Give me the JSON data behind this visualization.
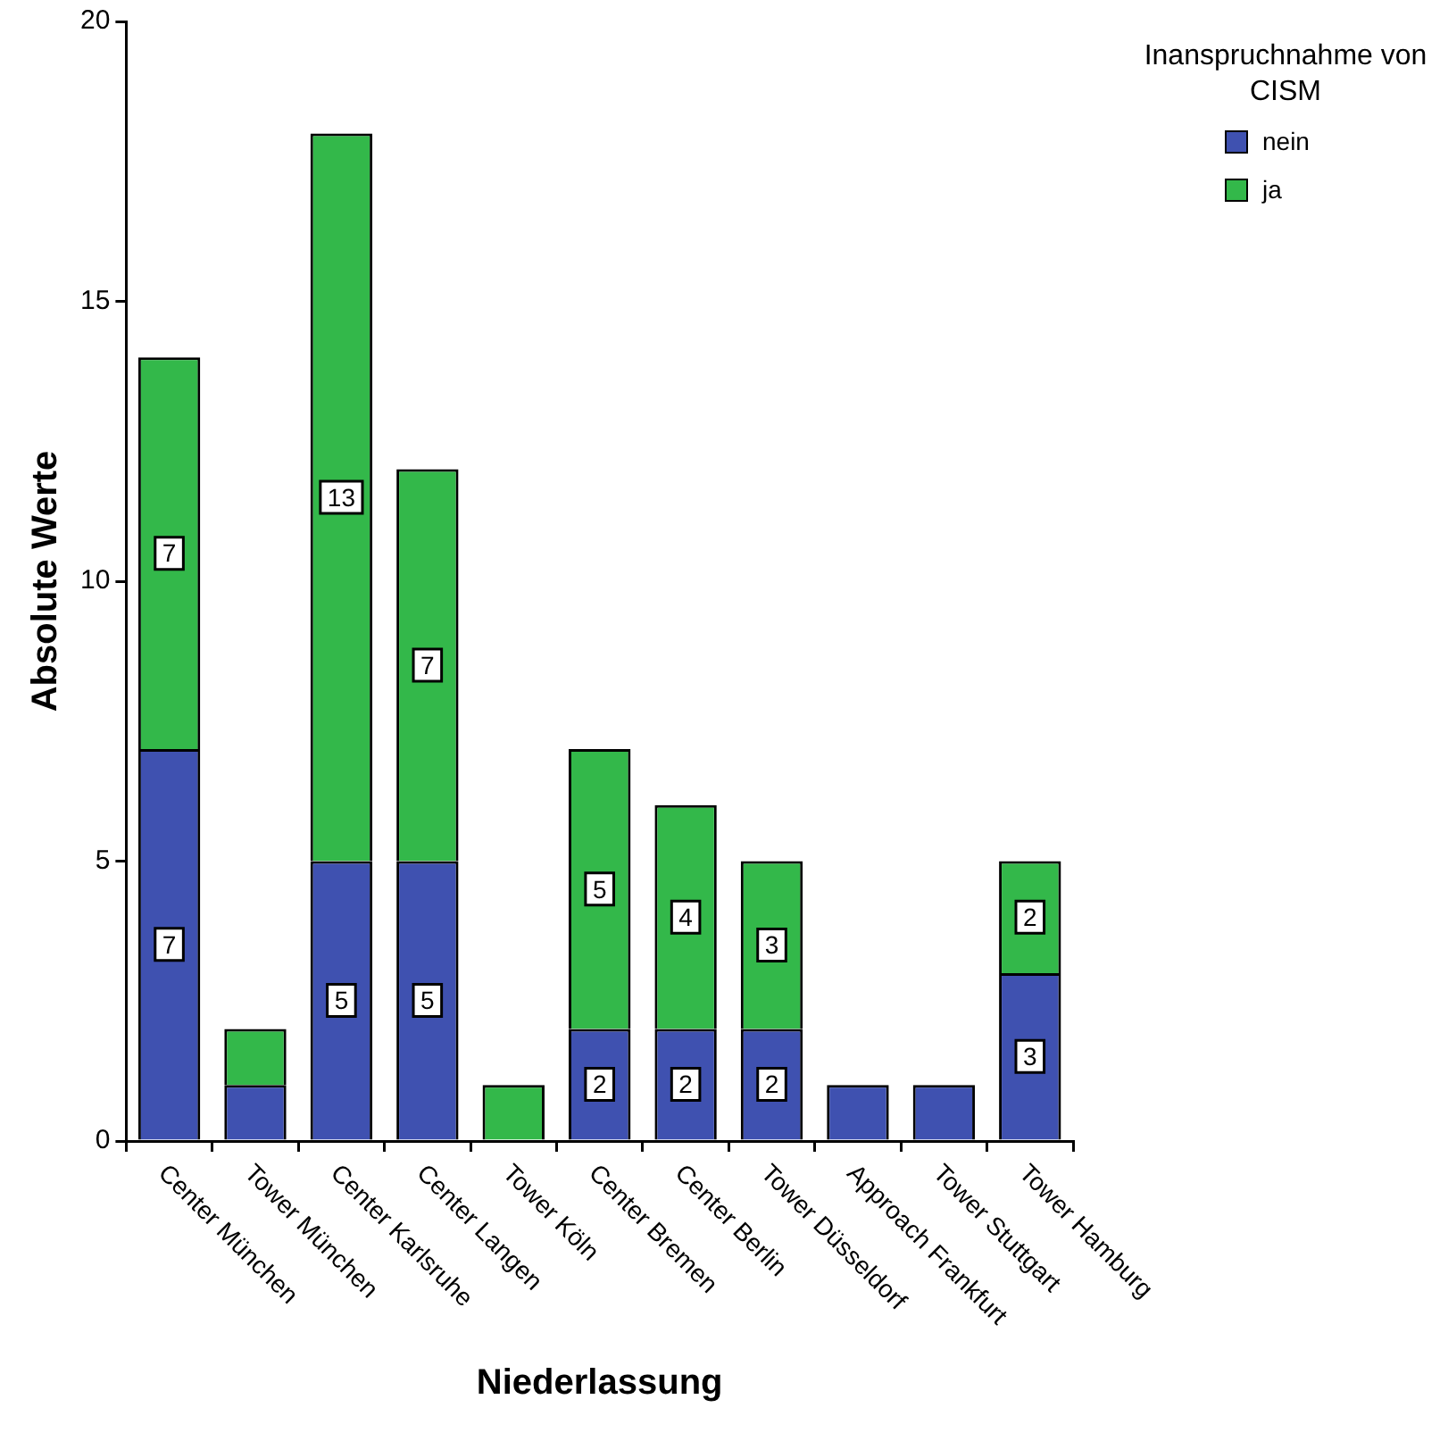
{
  "chart_data": {
    "type": "bar",
    "stacked": true,
    "xlabel": "Niederlassung",
    "ylabel": "Absolute Werte",
    "legend_title": "Inanspruchnahme von CISM",
    "legend": "top right",
    "categories": [
      "Center München",
      "Tower München",
      "Center Karlsruhe",
      "Center Langen",
      "Tower Köln",
      "Center Bremen",
      "Center Berlin",
      "Tower Düsseldorf",
      "Approach Frankfurt",
      "Tower Stuttgart",
      "Tower Hamburg"
    ],
    "series": [
      {
        "name": "nein",
        "color": "#3f51b0",
        "values": [
          7,
          1,
          5,
          5,
          0,
          2,
          2,
          2,
          1,
          1,
          3
        ],
        "value_labels": [
          "7",
          null,
          "5",
          "5",
          null,
          "2",
          "2",
          "2",
          null,
          null,
          "3"
        ]
      },
      {
        "name": "ja",
        "color": "#33b84a",
        "values": [
          7,
          1,
          13,
          7,
          1,
          5,
          4,
          3,
          0,
          0,
          2
        ],
        "value_labels": [
          "7",
          null,
          "13",
          "7",
          null,
          "5",
          "4",
          "3",
          null,
          null,
          "2"
        ]
      }
    ],
    "ylim": [
      0,
      20
    ],
    "yticks": [
      0,
      5,
      10,
      15,
      20
    ],
    "grid": false
  }
}
